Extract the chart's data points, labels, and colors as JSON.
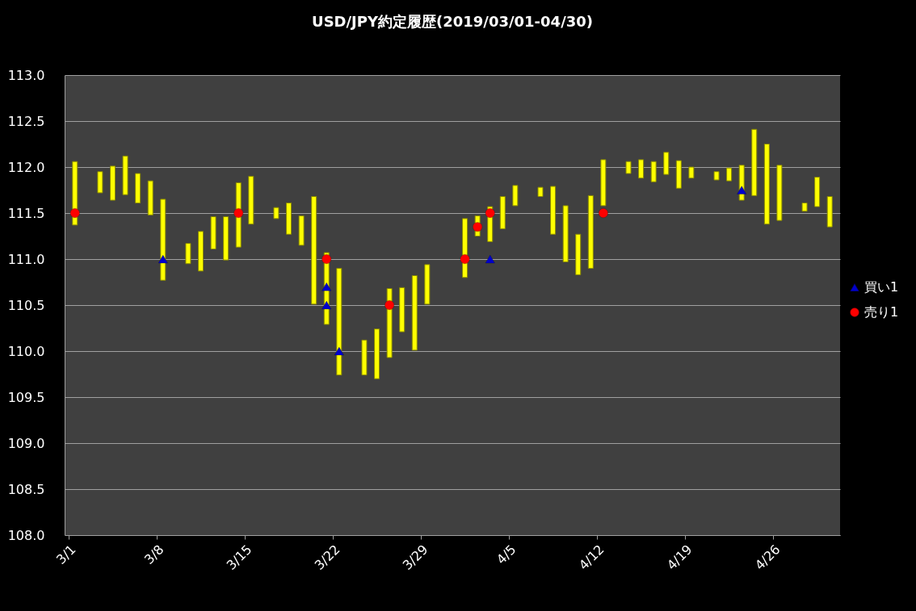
{
  "chart_data": {
    "type": "bar",
    "title": "USD/JPY約定履歴(2019/03/01-04/30)",
    "x": [
      "2019-03-01T12:00",
      "2019-03-03T12:00",
      "2019-03-04T12:00",
      "2019-03-05T12:00",
      "2019-03-06T12:00",
      "2019-03-07T12:00",
      "2019-03-08T12:00",
      "2019-03-10T12:00",
      "2019-03-11T12:00",
      "2019-03-12T12:00",
      "2019-03-13T12:00",
      "2019-03-14T12:00",
      "2019-03-15T12:00",
      "2019-03-17T12:00",
      "2019-03-18T12:00",
      "2019-03-19T12:00",
      "2019-03-20T12:00",
      "2019-03-21T12:00",
      "2019-03-22T12:00",
      "2019-03-24T12:00",
      "2019-03-25T12:00",
      "2019-03-26T12:00",
      "2019-03-27T12:00",
      "2019-03-28T12:00",
      "2019-03-29T12:00",
      "2019-04-01T12:00",
      "2019-04-02T12:00",
      "2019-04-03T12:00",
      "2019-04-04T12:00",
      "2019-04-05T12:00",
      "2019-04-07T12:00",
      "2019-04-08T12:00",
      "2019-04-09T12:00",
      "2019-04-10T12:00",
      "2019-04-11T12:00",
      "2019-04-12T12:00",
      "2019-04-14T12:00",
      "2019-04-15T12:00",
      "2019-04-16T12:00",
      "2019-04-17T12:00",
      "2019-04-18T12:00",
      "2019-04-19T12:00",
      "2019-04-21T12:00",
      "2019-04-22T12:00",
      "2019-04-23T12:00",
      "2019-04-24T12:00",
      "2019-04-25T12:00",
      "2019-04-26T12:00",
      "2019-04-28T12:00",
      "2019-04-29T12:00",
      "2019-04-30T12:00"
    ],
    "series": [
      {
        "color": "#ffff00",
        "values": [
          0.69,
          0.23,
          0.37,
          0.42,
          0.32,
          0.37,
          0.88,
          0.22,
          0.43,
          0.35,
          0.47,
          0.7,
          0.52,
          0.12,
          0.34,
          0.32,
          1.17,
          0.78,
          1.16,
          0.38,
          0.54,
          0.75,
          0.48,
          0.81,
          0.43,
          0.64,
          0.22,
          0.38,
          0.35,
          0.22,
          0.1,
          0.52,
          0.61,
          0.44,
          0.79,
          0.5,
          0.13,
          0.2,
          0.22,
          0.24,
          0.3,
          0.12,
          0.09,
          0.14,
          0.38,
          0.72,
          0.87,
          0.6,
          0.09,
          0.32,
          0.33
        ],
        "base": [
          111.37,
          111.72,
          111.64,
          111.7,
          111.61,
          111.48,
          110.77,
          110.95,
          110.87,
          111.11,
          110.99,
          111.13,
          111.38,
          111.44,
          111.27,
          111.15,
          110.51,
          110.29,
          109.74,
          109.74,
          109.7,
          109.93,
          110.21,
          110.01,
          110.51,
          110.8,
          111.25,
          111.19,
          111.33,
          111.58,
          111.68,
          111.27,
          110.97,
          110.83,
          110.9,
          111.58,
          111.93,
          111.88,
          111.84,
          111.92,
          111.77,
          111.88,
          111.86,
          111.85,
          111.64,
          111.69,
          111.38,
          111.42,
          111.52,
          111.57,
          111.35
        ]
      },
      {
        "type": "scatter",
        "name": "買い1",
        "color": "#0000cc",
        "marker": "triangle",
        "x": [
          "2019-03-08T12:00",
          "2019-03-21T12:00",
          "2019-03-21T12:00",
          "2019-03-22T12:00",
          "2019-04-03T12:00",
          "2019-04-23T12:00"
        ],
        "values": [
          111.0,
          110.7,
          110.5,
          110.0,
          111.0,
          111.75
        ]
      },
      {
        "type": "scatter",
        "name": "売り1",
        "color": "#ff0000",
        "marker": "circle",
        "x": [
          "2019-03-01T12:00",
          "2019-03-14T12:00",
          "2019-03-21T12:00",
          "2019-03-26T12:00",
          "2019-04-01T12:00",
          "2019-04-02T12:00",
          "2019-04-03T12:00",
          "2019-04-12T12:00"
        ],
        "values": [
          111.5,
          111.5,
          111.0,
          110.5,
          111.0,
          111.35,
          111.5,
          111.5
        ]
      }
    ],
    "xlim": [
      "2019-03-01",
      "2019-05-01"
    ],
    "xticks": [
      {
        "value": "2019-03-01",
        "label": "3/1"
      },
      {
        "value": "2019-03-08",
        "label": "3/8"
      },
      {
        "value": "2019-03-15",
        "label": "3/15"
      },
      {
        "value": "2019-03-22",
        "label": "3/22"
      },
      {
        "value": "2019-03-29",
        "label": "3/29"
      },
      {
        "value": "2019-04-05",
        "label": "4/5"
      },
      {
        "value": "2019-04-12",
        "label": "4/12"
      },
      {
        "value": "2019-04-19",
        "label": "4/19"
      },
      {
        "value": "2019-04-26",
        "label": "4/26"
      }
    ],
    "ylim": [
      108,
      113
    ],
    "yticks": [
      {
        "value": 108,
        "label": "108.0"
      },
      {
        "value": 108.5,
        "label": "108.5"
      },
      {
        "value": 109,
        "label": "109.0"
      },
      {
        "value": 109.5,
        "label": "109.5"
      },
      {
        "value": 110,
        "label": "110.0"
      },
      {
        "value": 110.5,
        "label": "110.5"
      },
      {
        "value": 111,
        "label": "111.0"
      },
      {
        "value": 111.5,
        "label": "111.5"
      },
      {
        "value": 112,
        "label": "112.0"
      },
      {
        "value": 112.5,
        "label": "112.5"
      },
      {
        "value": 113,
        "label": "113.0"
      }
    ],
    "grid": "y",
    "legend": "right"
  }
}
